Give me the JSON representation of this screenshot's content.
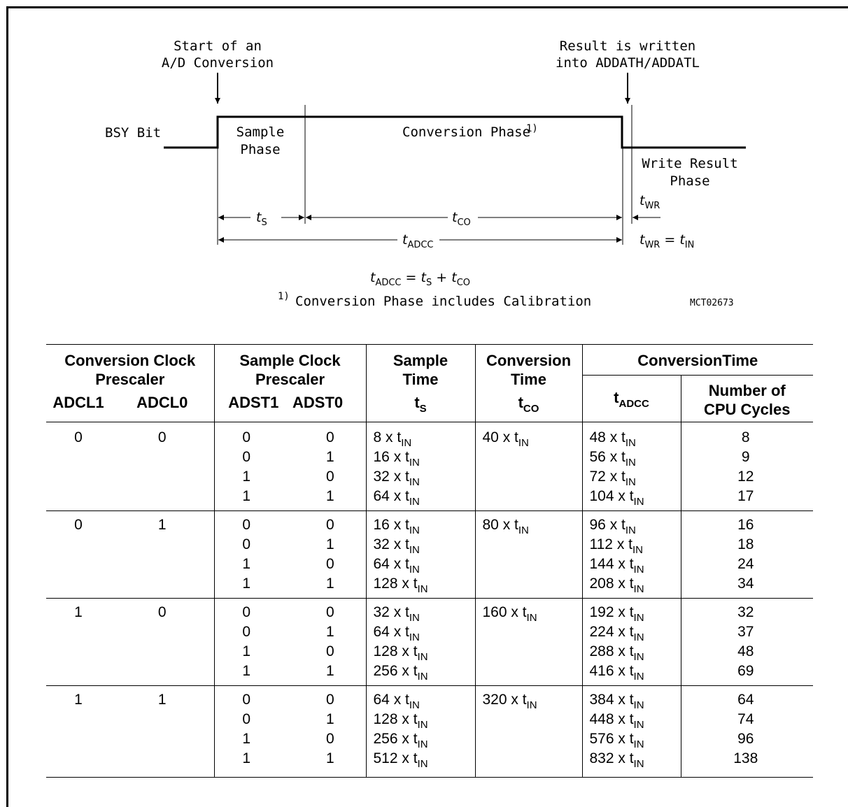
{
  "diagram": {
    "label_start_line1": "Start of an",
    "label_start_line2": "A/D Conversion",
    "label_result_line1": "Result is written",
    "label_result_line2": "into ADDATH/ADDATL",
    "label_bsy": "BSY Bit",
    "label_sample_line1": "Sample",
    "label_sample_line2": "Phase",
    "label_conversion": "Conversion Phase",
    "label_conversion_note": "1)",
    "label_write_line1": "Write Result",
    "label_write_line2": "Phase",
    "dim_ts": "t",
    "dim_ts_sub": "S",
    "dim_tco": "t",
    "dim_tco_sub": "CO",
    "dim_twr": "t",
    "dim_twr_sub": "WR",
    "dim_tadcc": "t",
    "dim_tadcc_sub": "ADCC",
    "eq_twr_lhs": "t",
    "eq_twr_lhs_sub": "WR",
    "eq_twr_mid": " = t",
    "eq_twr_rhs_sub": "IN",
    "formula_t": "t",
    "formula_adcc_sub": "ADCC",
    "formula_eq": " = t",
    "formula_s_sub": "S",
    "formula_plus": " + t",
    "formula_co_sub": "CO",
    "footnote_mark": "1)",
    "footnote_text": "Conversion Phase includes Calibration",
    "figure_code": "MCT02673"
  },
  "table": {
    "headers": {
      "conv_clock_line1": "Conversion Clock",
      "conv_clock_line2": "Prescaler",
      "sample_clock_line1": "Sample Clock",
      "sample_clock_line2": "Prescaler",
      "sample_time_line1": "Sample",
      "sample_time_line2": "Time",
      "conversion_time_line1": "Conversion",
      "conversion_time_line2": "Time",
      "conversion_total": "ConversionTime",
      "adcl1": "ADCL1",
      "adcl0": "ADCL0",
      "adst1": "ADST1",
      "adst0": "ADST0",
      "ts": "t",
      "ts_sub": "S",
      "tco": "t",
      "tco_sub": "CO",
      "tadcc": "t",
      "tadcc_sub": "ADCC",
      "cycles_line1": "Number of",
      "cycles_line2": "CPU Cycles"
    },
    "unit_sub": "IN",
    "groups": [
      {
        "adcl1": "0",
        "adcl0": "0",
        "tco": "40 x t",
        "rows": [
          {
            "adst1": "0",
            "adst0": "0",
            "ts": "8 x t",
            "tadcc": "48 x t",
            "cycles": "8"
          },
          {
            "adst1": "0",
            "adst0": "1",
            "ts": "16 x t",
            "tadcc": "56 x t",
            "cycles": "9"
          },
          {
            "adst1": "1",
            "adst0": "0",
            "ts": "32 x t",
            "tadcc": "72 x t",
            "cycles": "12"
          },
          {
            "adst1": "1",
            "adst0": "1",
            "ts": "64 x t",
            "tadcc": "104 x t",
            "cycles": "17"
          }
        ]
      },
      {
        "adcl1": "0",
        "adcl0": "1",
        "tco": "80 x t",
        "rows": [
          {
            "adst1": "0",
            "adst0": "0",
            "ts": "16 x t",
            "tadcc": "96 x t",
            "cycles": "16"
          },
          {
            "adst1": "0",
            "adst0": "1",
            "ts": "32 x t",
            "tadcc": "112 x t",
            "cycles": "18"
          },
          {
            "adst1": "1",
            "adst0": "0",
            "ts": "64 x t",
            "tadcc": "144 x t",
            "cycles": "24"
          },
          {
            "adst1": "1",
            "adst0": "1",
            "ts": "128 x t",
            "tadcc": "208 x t",
            "cycles": "34"
          }
        ]
      },
      {
        "adcl1": "1",
        "adcl0": "0",
        "tco": "160 x t",
        "rows": [
          {
            "adst1": "0",
            "adst0": "0",
            "ts": "32 x t",
            "tadcc": "192 x t",
            "cycles": "32"
          },
          {
            "adst1": "0",
            "adst0": "1",
            "ts": "64 x t",
            "tadcc": "224 x t",
            "cycles": "37"
          },
          {
            "adst1": "1",
            "adst0": "0",
            "ts": "128 x t",
            "tadcc": "288 x t",
            "cycles": "48"
          },
          {
            "adst1": "1",
            "adst0": "1",
            "ts": "256 x t",
            "tadcc": "416 x t",
            "cycles": "69"
          }
        ]
      },
      {
        "adcl1": "1",
        "adcl0": "1",
        "tco": "320 x t",
        "rows": [
          {
            "adst1": "0",
            "adst0": "0",
            "ts": "64 x t",
            "tadcc": "384 x t",
            "cycles": "64"
          },
          {
            "adst1": "0",
            "adst0": "1",
            "ts": "128 x t",
            "tadcc": "448 x t",
            "cycles": "74"
          },
          {
            "adst1": "1",
            "adst0": "0",
            "ts": "256 x t",
            "tadcc": "576 x t",
            "cycles": "96"
          },
          {
            "adst1": "1",
            "adst0": "1",
            "ts": "512 x t",
            "tadcc": "832 x t",
            "cycles": "138"
          }
        ]
      }
    ]
  }
}
